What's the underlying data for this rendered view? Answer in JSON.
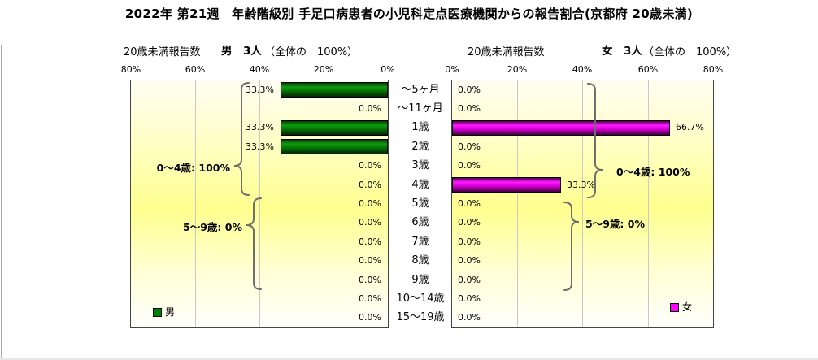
{
  "title": "2022年 第21週　年齢階級別 手足口病患者の小児科定点医療機関からの報告割合(京都府 20歳未満)",
  "chart_data": {
    "type": "bar",
    "orientation": "horizontal",
    "layout": "population-pyramid",
    "header_prefix": "20歳未満報告数",
    "categories": [
      "～5ヶ月",
      "～11ヶ月",
      "1歳",
      "2歳",
      "3歳",
      "4歳",
      "5歳",
      "6歳",
      "7歳",
      "8歳",
      "9歳",
      "10～14歳",
      "15～19歳"
    ],
    "xlim": [
      0,
      80
    ],
    "xunit": "%",
    "grid": true,
    "series": [
      {
        "name": "男",
        "label": "男　3人",
        "share_of_total": "（全体の　100%）",
        "color": "#008000",
        "axis_direction": "right-to-left",
        "axis_ticks": [
          "80%",
          "60%",
          "40%",
          "20%",
          "0%"
        ],
        "values": [
          33.3,
          0.0,
          33.3,
          33.3,
          0.0,
          0.0,
          0.0,
          0.0,
          0.0,
          0.0,
          0.0,
          0.0,
          0.0
        ],
        "value_labels": [
          "33.3%",
          "0.0%",
          "33.3%",
          "33.3%",
          "0.0%",
          "0.0%",
          "0.0%",
          "0.0%",
          "0.0%",
          "0.0%",
          "0.0%",
          "0.0%",
          "0.0%"
        ]
      },
      {
        "name": "女",
        "label": "女　3人",
        "share_of_total": "（全体の　100%）",
        "color": "#FF00FF",
        "axis_direction": "left-to-right",
        "axis_ticks": [
          "0%",
          "20%",
          "40%",
          "60%",
          "80%"
        ],
        "values": [
          0.0,
          0.0,
          66.7,
          0.0,
          0.0,
          33.3,
          0.0,
          0.0,
          0.0,
          0.0,
          0.0,
          0.0,
          0.0
        ],
        "value_labels": [
          "0.0%",
          "0.0%",
          "66.7%",
          "0.0%",
          "0.0%",
          "33.3%",
          "0.0%",
          "0.0%",
          "0.0%",
          "0.0%",
          "0.0%",
          "0.0%",
          "0.0%"
        ]
      }
    ],
    "annotations": [
      {
        "text": "0～4歳: 100%",
        "side": "male",
        "rows": "0-5"
      },
      {
        "text": "5～9歳: 0%",
        "side": "male",
        "rows": "6-10"
      },
      {
        "text": "0～4歳: 100%",
        "side": "female",
        "rows": "0-5"
      },
      {
        "text": "5～9歳: 0%",
        "side": "female",
        "rows": "6-10"
      }
    ]
  }
}
